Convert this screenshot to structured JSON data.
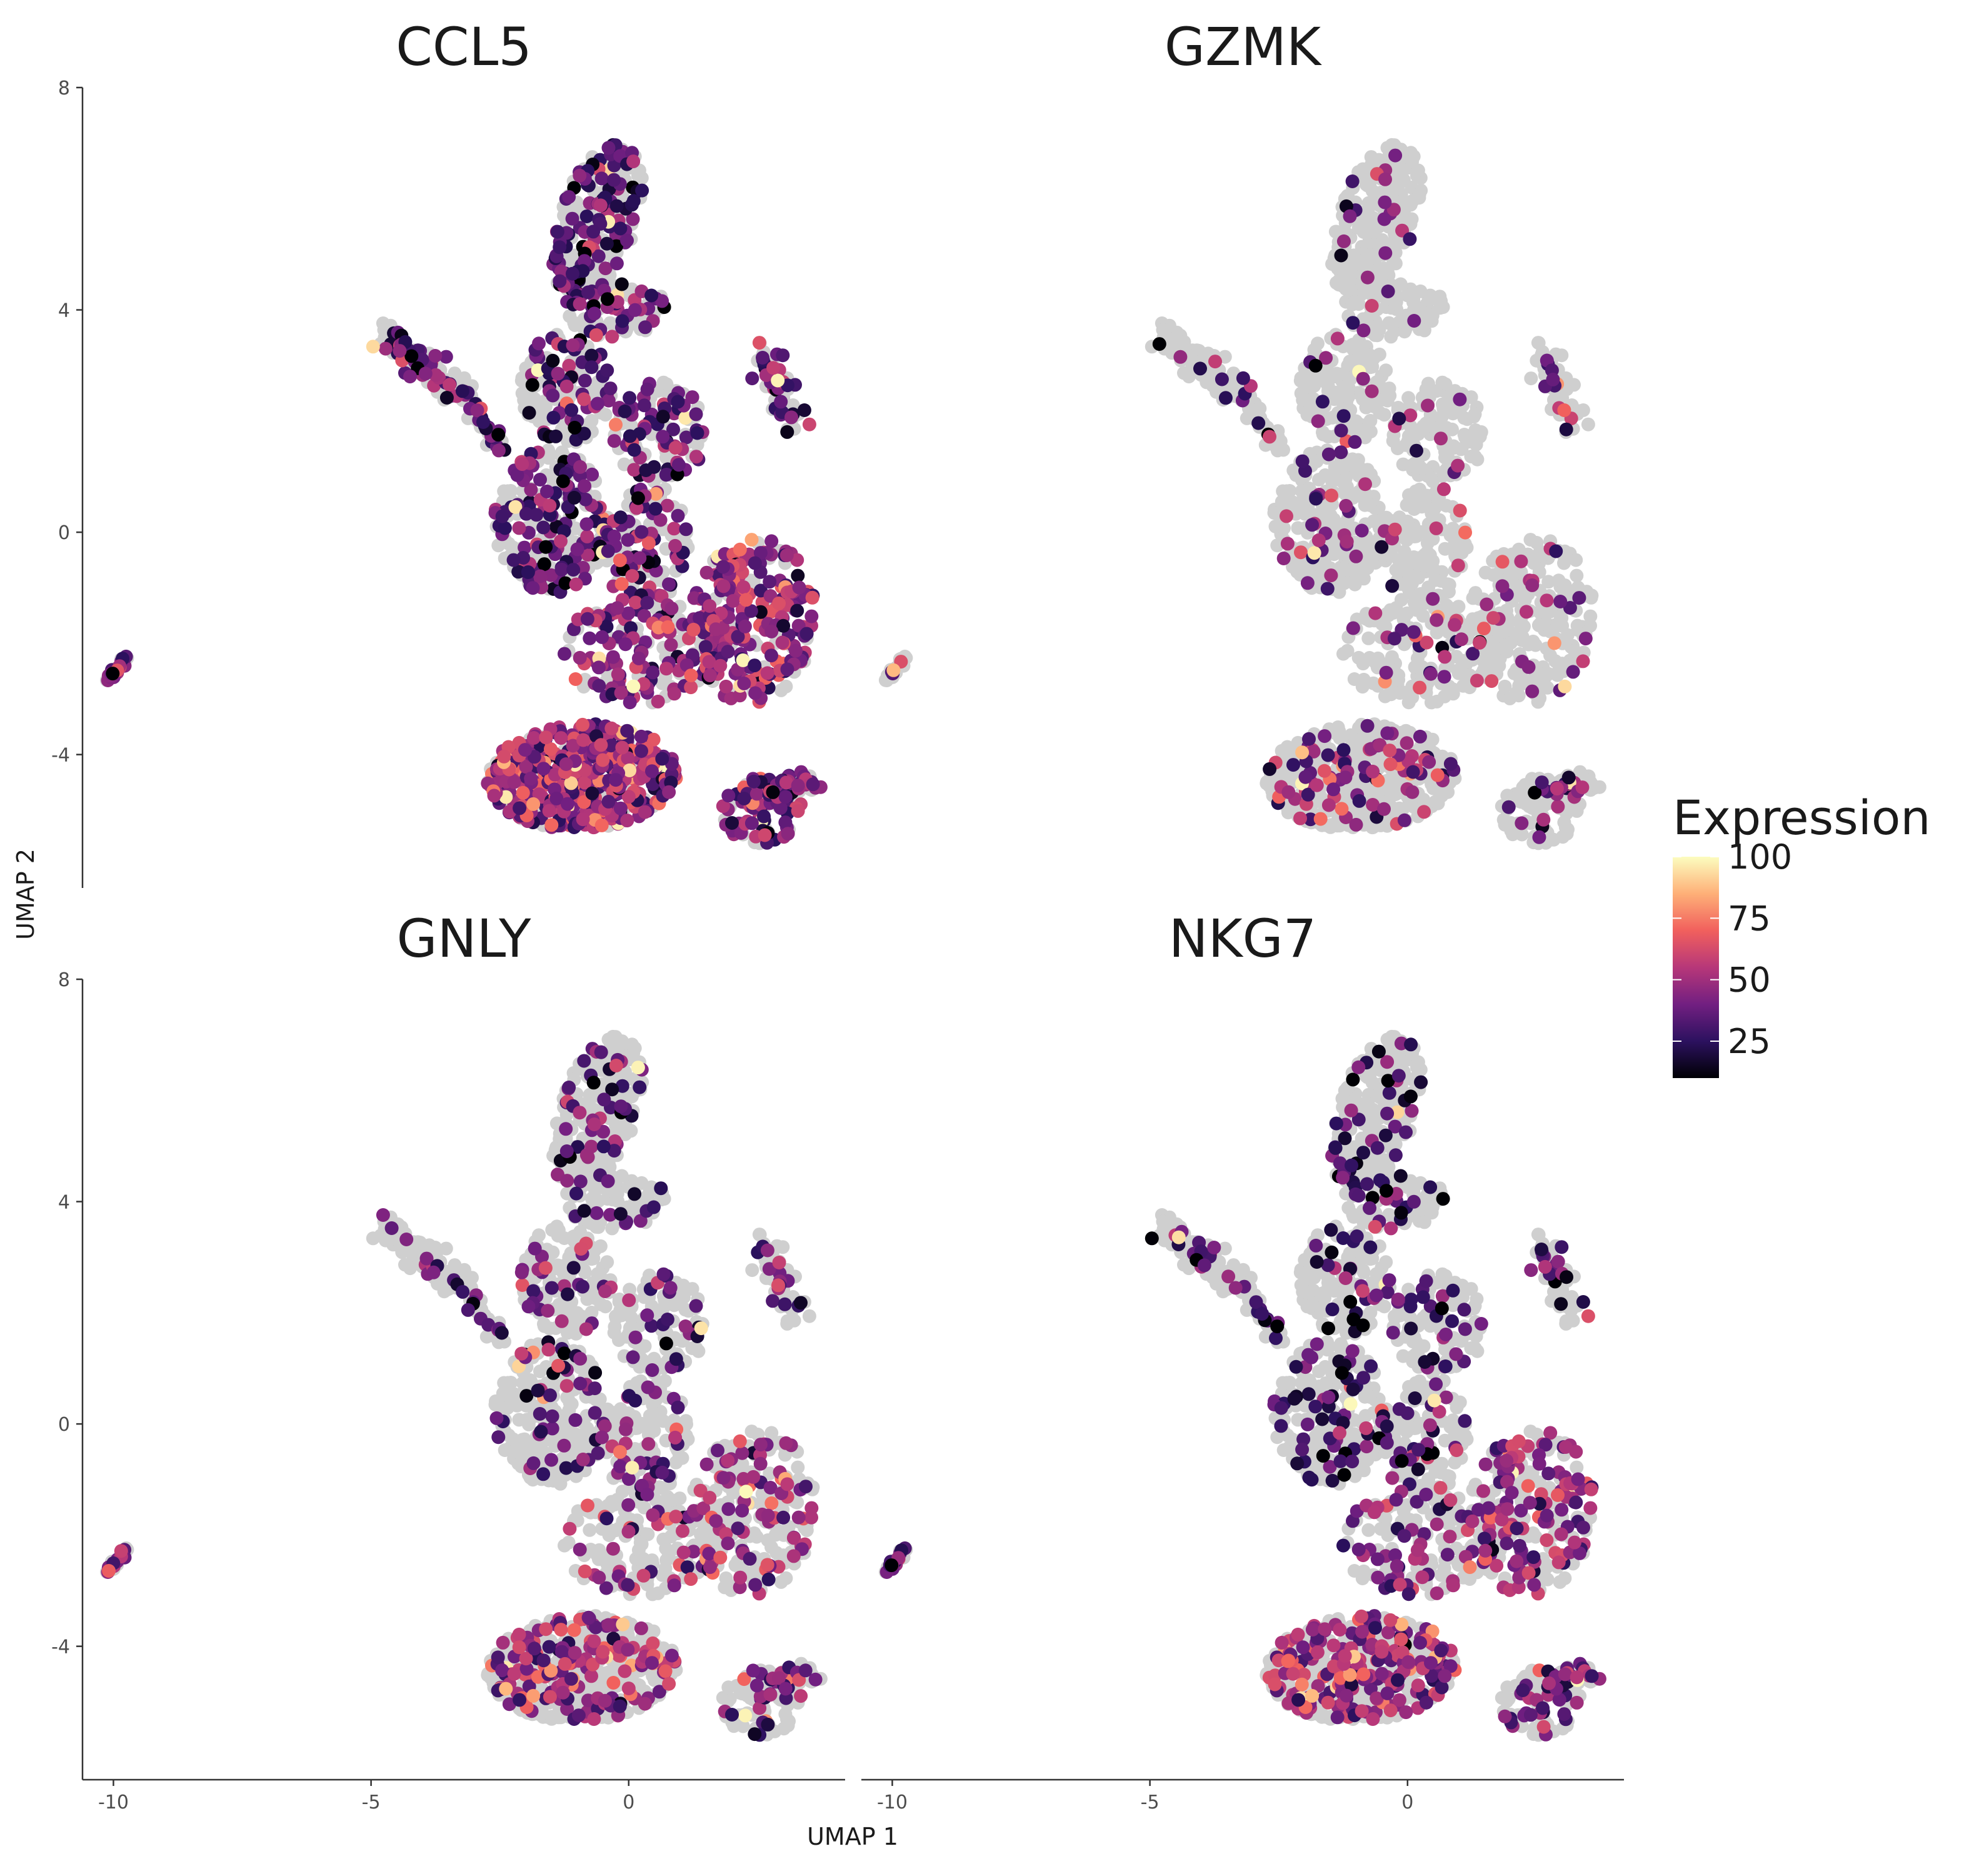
{
  "chart_data": {
    "type": "scatter",
    "subtype": "umap-feature-plot",
    "xlabel": "UMAP 1",
    "ylabel": "UMAP 2",
    "xlim": [
      -10.6,
      4.2
    ],
    "ylim": [
      -6.4,
      8
    ],
    "x_ticks": [
      -10,
      -5,
      0
    ],
    "x_tick_labels": [
      "-10",
      "-5",
      "0"
    ],
    "y_ticks": [
      -4,
      0,
      4,
      8
    ],
    "y_tick_labels": [
      "-4",
      "0",
      "4",
      "8"
    ],
    "grid": false,
    "background_point_color": "#cfcfcf",
    "colormap": "magma",
    "color_stops": [
      "#000004",
      "#2c115f",
      "#721f81",
      "#b73779",
      "#f1605d",
      "#feb078",
      "#fcfdbf"
    ],
    "legend": {
      "title": "Expression",
      "range": [
        10,
        100
      ],
      "ticks": [
        25,
        50,
        75,
        100
      ],
      "tick_labels": [
        "25",
        "50",
        "75",
        "100"
      ],
      "position": "right"
    },
    "panels": [
      {
        "title": "CCL5",
        "coverage": 0.72,
        "level_main": 32,
        "level_hot": 60,
        "hot_spread": 0.75
      },
      {
        "title": "GZMK",
        "coverage": 0.14,
        "level_main": 40,
        "level_hot": 55,
        "hot_spread": 0.55
      },
      {
        "title": "GNLY",
        "coverage": 0.3,
        "level_main": 32,
        "level_hot": 60,
        "hot_spread": 0.85
      },
      {
        "title": "NKG7",
        "coverage": 0.36,
        "level_main": 26,
        "level_hot": 58,
        "hot_spread": 0.9
      }
    ]
  }
}
